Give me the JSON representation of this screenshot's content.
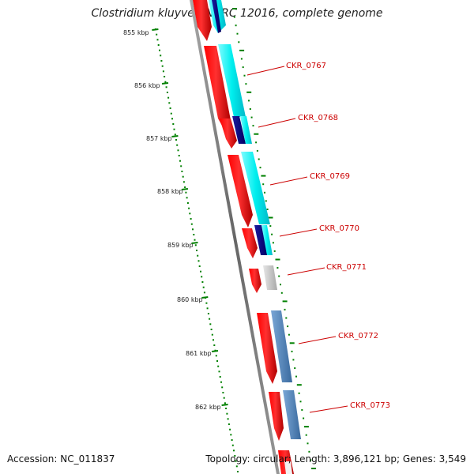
{
  "title": "Clostridium kluyveri NBRC 12016, complete genome",
  "accession": "Accession: NC_011837",
  "topology": "Topology: circular; Length: 3,896,121 bp; Genes: 3,549",
  "colors": {
    "backbone": "#808080",
    "cds": "#ff0000",
    "cyan_feature": "#00e5ee",
    "navy_feature": "#000080",
    "gray_feature": "#c0c0c0",
    "steelblue_feature": "#4a7fb5",
    "tick": "#008000",
    "label": "#cc0000"
  },
  "ruler": {
    "ticks": [
      "855 kbp",
      "856 kbp",
      "857 kbp",
      "858 kbp",
      "859 kbp",
      "860 kbp",
      "861 kbp",
      "862 kbp"
    ]
  },
  "genes": [
    {
      "label": "CKR_0767"
    },
    {
      "label": "CKR_0768"
    },
    {
      "label": "CKR_0769"
    },
    {
      "label": "CKR_0770"
    },
    {
      "label": "CKR_0771"
    },
    {
      "label": "CKR_0772"
    },
    {
      "label": "CKR_0773"
    }
  ]
}
